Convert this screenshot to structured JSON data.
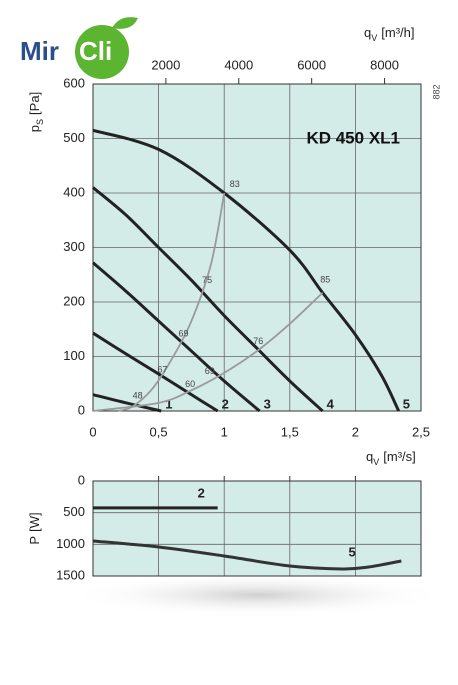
{
  "logo": {
    "left": "Mir",
    "right": "Cli"
  },
  "side_note": "882",
  "chart_data": [
    {
      "type": "line",
      "title": "KD 450 XL1",
      "xlabel": {
        "main": "q",
        "sub": "V",
        "unit": "[m³/s]"
      },
      "x2label": {
        "main": "q",
        "sub": "V",
        "unit": "[m³/h]"
      },
      "ylabel": {
        "main": "p",
        "sub": "S",
        "unit": "[Pa]"
      },
      "xlim": [
        0,
        2.5
      ],
      "xticks": [
        0,
        {
          "value": 0.5,
          "label": "0,5"
        },
        1,
        {
          "value": 1.5,
          "label": "1,5"
        },
        2,
        {
          "value": 2.5,
          "label": "2,5"
        }
      ],
      "x2lim": [
        0,
        9000
      ],
      "x2ticks": [
        2000,
        4000,
        6000,
        8000
      ],
      "ylim": [
        0,
        600
      ],
      "yticks": [
        0,
        100,
        200,
        300,
        400,
        500,
        600
      ],
      "grid": true,
      "background": "#d4ece7",
      "series": [
        {
          "name": "1",
          "color": "#222222",
          "x": [
            0,
            0.25,
            0.52
          ],
          "values": [
            30,
            15,
            0
          ]
        },
        {
          "name": "2",
          "color": "#222222",
          "x": [
            0,
            0.25,
            0.5,
            0.75,
            0.95
          ],
          "values": [
            143,
            105,
            68,
            30,
            0
          ]
        },
        {
          "name": "3",
          "color": "#222222",
          "x": [
            0,
            0.25,
            0.5,
            0.75,
            1,
            1.27
          ],
          "values": [
            272,
            220,
            165,
            110,
            55,
            0
          ]
        },
        {
          "name": "4",
          "color": "#222222",
          "x": [
            0,
            0.25,
            0.5,
            0.75,
            1,
            1.25,
            1.5,
            1.75
          ],
          "values": [
            410,
            360,
            300,
            240,
            175,
            115,
            55,
            0
          ]
        },
        {
          "name": "5",
          "color": "#222222",
          "x": [
            0,
            0.5,
            1,
            1.5,
            1.75,
            2,
            2.2,
            2.33
          ],
          "values": [
            515,
            480,
            400,
            295,
            217,
            140,
            65,
            0
          ]
        },
        {
          "color": "#9a9a9a",
          "x": [
            0.19,
            0.3,
            0.45,
            0.6,
            0.75,
            0.9,
            1.0
          ],
          "values": [
            0,
            8,
            40,
            95,
            165,
            270,
            400
          ]
        },
        {
          "color": "#9a9a9a",
          "x": [
            0,
            0.5,
            0.75,
            1,
            1.25,
            1.5,
            1.75
          ],
          "values": [
            0,
            15,
            38,
            70,
            110,
            160,
            217
          ]
        }
      ],
      "efficiency_labels": [
        {
          "value": 48,
          "x": 0.34,
          "y": 27
        },
        {
          "value": 67,
          "x": 0.53,
          "y": 75
        },
        {
          "value": 69,
          "x": 0.69,
          "y": 141
        },
        {
          "value": 75,
          "x": 0.87,
          "y": 239
        },
        {
          "value": 83,
          "x": 1.08,
          "y": 415
        },
        {
          "value": 60,
          "x": 0.74,
          "y": 48
        },
        {
          "value": 69,
          "x": 0.89,
          "y": 72
        },
        {
          "value": 76,
          "x": 1.26,
          "y": 127
        },
        {
          "value": 85,
          "x": 1.77,
          "y": 240
        }
      ]
    },
    {
      "type": "line",
      "ylabel": {
        "main": "P",
        "unit": "[W]"
      },
      "xlim": [
        0,
        2.5
      ],
      "xticks": [
        0.5,
        1,
        1.5,
        2
      ],
      "ylim": [
        0,
        1500
      ],
      "yticks": [
        0,
        500,
        1000,
        1500
      ],
      "inverted": true,
      "grid": true,
      "background": "#d4ece7",
      "series": [
        {
          "name": "2",
          "color": "#222222",
          "x": [
            0,
            0.95
          ],
          "values": [
            425,
            425
          ]
        },
        {
          "name": "5",
          "color": "#333333",
          "x": [
            0,
            0.5,
            1,
            1.5,
            1.9,
            2.1,
            2.35
          ],
          "values": [
            947,
            1042,
            1184,
            1342,
            1389,
            1358,
            1263
          ]
        }
      ]
    }
  ]
}
